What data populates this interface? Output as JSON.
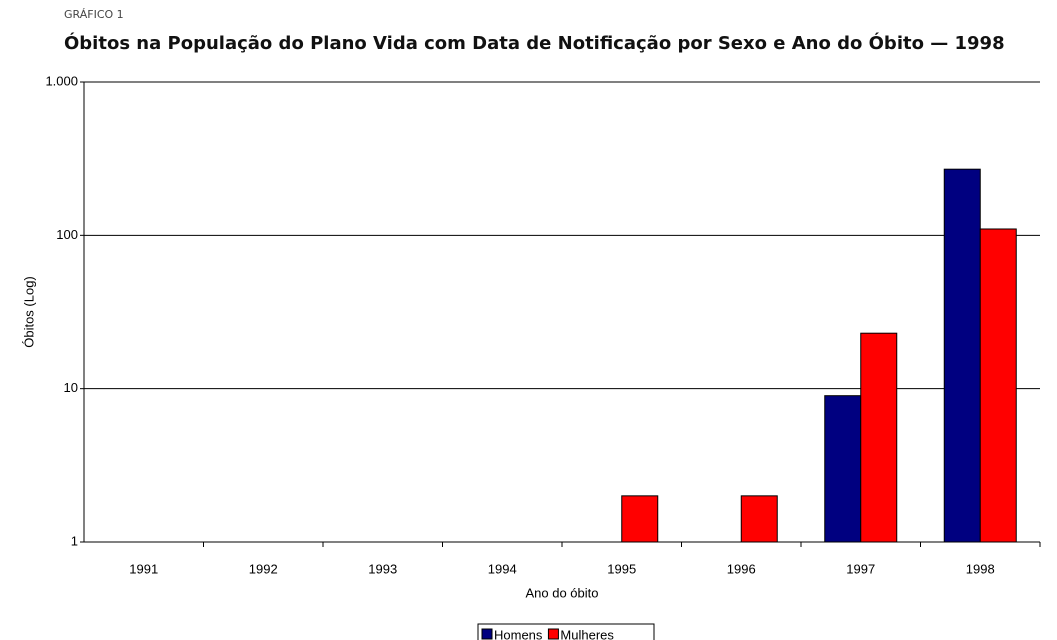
{
  "chart_data": {
    "type": "bar",
    "kicker": "GRÁFICO 1",
    "title": "Óbitos na População do Plano Vida com Data de Notificação por Sexo e Ano do Óbito — 1998",
    "x_label": "Ano do óbito",
    "y_label": "Óbitos (Log)",
    "categories": [
      "1991",
      "1992",
      "1993",
      "1994",
      "1995",
      "1996",
      "1997",
      "1998"
    ],
    "series": [
      {
        "name": "Homens",
        "color": "#000080",
        "values": [
          null,
          null,
          null,
          null,
          null,
          null,
          9,
          270
        ]
      },
      {
        "name": "Mulheres",
        "color": "#ff0000",
        "values": [
          null,
          null,
          null,
          null,
          2,
          2,
          23,
          110
        ]
      }
    ],
    "log_scale": true,
    "ylim": [
      1,
      1000
    ],
    "yticks": [
      1,
      10,
      100,
      {
        "value": 1000,
        "label": "1.000"
      }
    ],
    "grid": true,
    "legend": "bottom"
  }
}
